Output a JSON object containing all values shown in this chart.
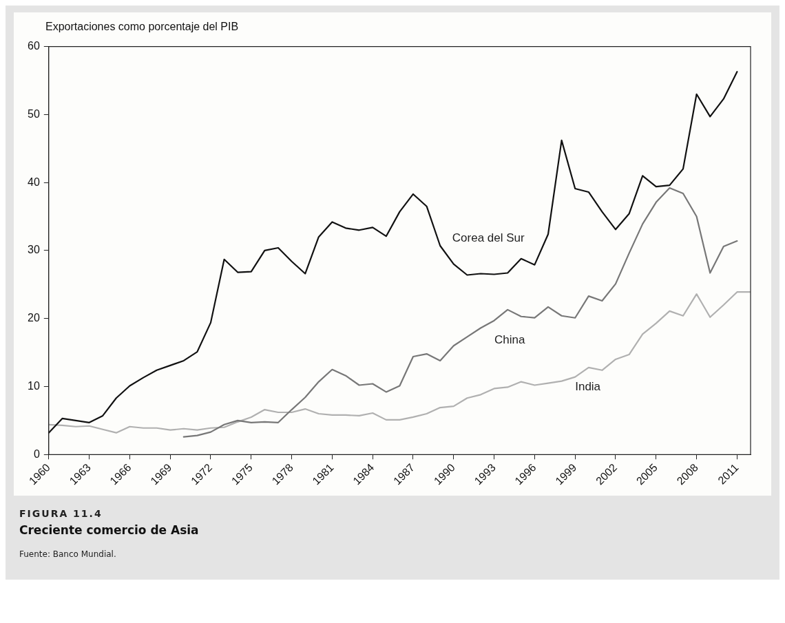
{
  "chart_data": {
    "type": "line",
    "title": "Creciente comercio de Asia",
    "subtitle": "FIGURA 11.4",
    "ylabel": "Exportaciones como porcentaje del PIB",
    "annotations": [
      "Fuente: Banco Mundial."
    ],
    "x": [
      1960,
      1961,
      1962,
      1963,
      1964,
      1965,
      1966,
      1967,
      1968,
      1969,
      1970,
      1971,
      1972,
      1973,
      1974,
      1975,
      1976,
      1977,
      1978,
      1979,
      1980,
      1981,
      1982,
      1983,
      1984,
      1985,
      1986,
      1987,
      1988,
      1989,
      1990,
      1991,
      1992,
      1993,
      1994,
      1995,
      1996,
      1997,
      1998,
      1999,
      2000,
      2001,
      2002,
      2003,
      2004,
      2005,
      2006,
      2007,
      2008,
      2009,
      2010,
      2011,
      2012
    ],
    "series": [
      {
        "name": "Corea del Sur",
        "color": "#111111",
        "values": [
          3.2,
          5.3,
          5.0,
          4.7,
          5.7,
          8.3,
          10.1,
          11.3,
          12.4,
          13.1,
          13.8,
          15.1,
          19.4,
          28.7,
          26.8,
          26.9,
          30.0,
          30.4,
          28.4,
          26.6,
          32.0,
          34.2,
          33.3,
          33.0,
          33.4,
          32.1,
          35.7,
          38.3,
          36.5,
          30.7,
          28.0,
          26.4,
          26.6,
          26.5,
          26.7,
          28.8,
          27.9,
          32.4,
          46.2,
          39.1,
          38.6,
          35.7,
          33.1,
          35.4,
          41.0,
          39.4,
          39.6,
          42.0,
          53.0,
          49.7,
          52.3,
          56.3,
          null
        ]
      },
      {
        "name": "China",
        "color": "#777777",
        "values": [
          null,
          null,
          null,
          null,
          null,
          null,
          null,
          null,
          null,
          null,
          2.6,
          2.8,
          3.3,
          4.4,
          5.0,
          4.7,
          4.8,
          4.7,
          6.6,
          8.4,
          10.7,
          12.5,
          11.6,
          10.2,
          10.4,
          9.2,
          10.1,
          14.4,
          14.8,
          13.8,
          16.0,
          17.3,
          18.6,
          19.7,
          21.3,
          20.3,
          20.1,
          21.7,
          20.4,
          20.1,
          23.3,
          22.6,
          25.1,
          29.6,
          33.9,
          37.1,
          39.2,
          38.4,
          35.0,
          26.7,
          30.6,
          31.4,
          null
        ]
      },
      {
        "name": "India",
        "color": "#b0b0b0",
        "values": [
          4.4,
          4.3,
          4.1,
          4.2,
          3.7,
          3.2,
          4.1,
          3.9,
          3.9,
          3.6,
          3.8,
          3.6,
          3.9,
          4.0,
          4.8,
          5.5,
          6.6,
          6.2,
          6.2,
          6.7,
          6.0,
          5.8,
          5.8,
          5.7,
          6.1,
          5.1,
          5.1,
          5.5,
          6.0,
          6.9,
          7.1,
          8.3,
          8.8,
          9.7,
          9.9,
          10.7,
          10.2,
          10.5,
          10.8,
          11.4,
          12.8,
          12.4,
          14.0,
          14.7,
          17.7,
          19.3,
          21.1,
          20.4,
          23.6,
          20.2,
          22.0,
          23.9,
          23.9
        ]
      }
    ],
    "xlim": [
      1960,
      2012
    ],
    "xticks": [
      1960,
      1963,
      1966,
      1969,
      1972,
      1975,
      1978,
      1981,
      1984,
      1987,
      1990,
      1993,
      1996,
      1999,
      2002,
      2005,
      2008,
      2011
    ],
    "ylim": [
      0,
      60
    ],
    "yticks": [
      0,
      10,
      20,
      30,
      40,
      50,
      60
    ],
    "grid": false,
    "legend": false,
    "marker": "none",
    "line_style": "solid"
  }
}
